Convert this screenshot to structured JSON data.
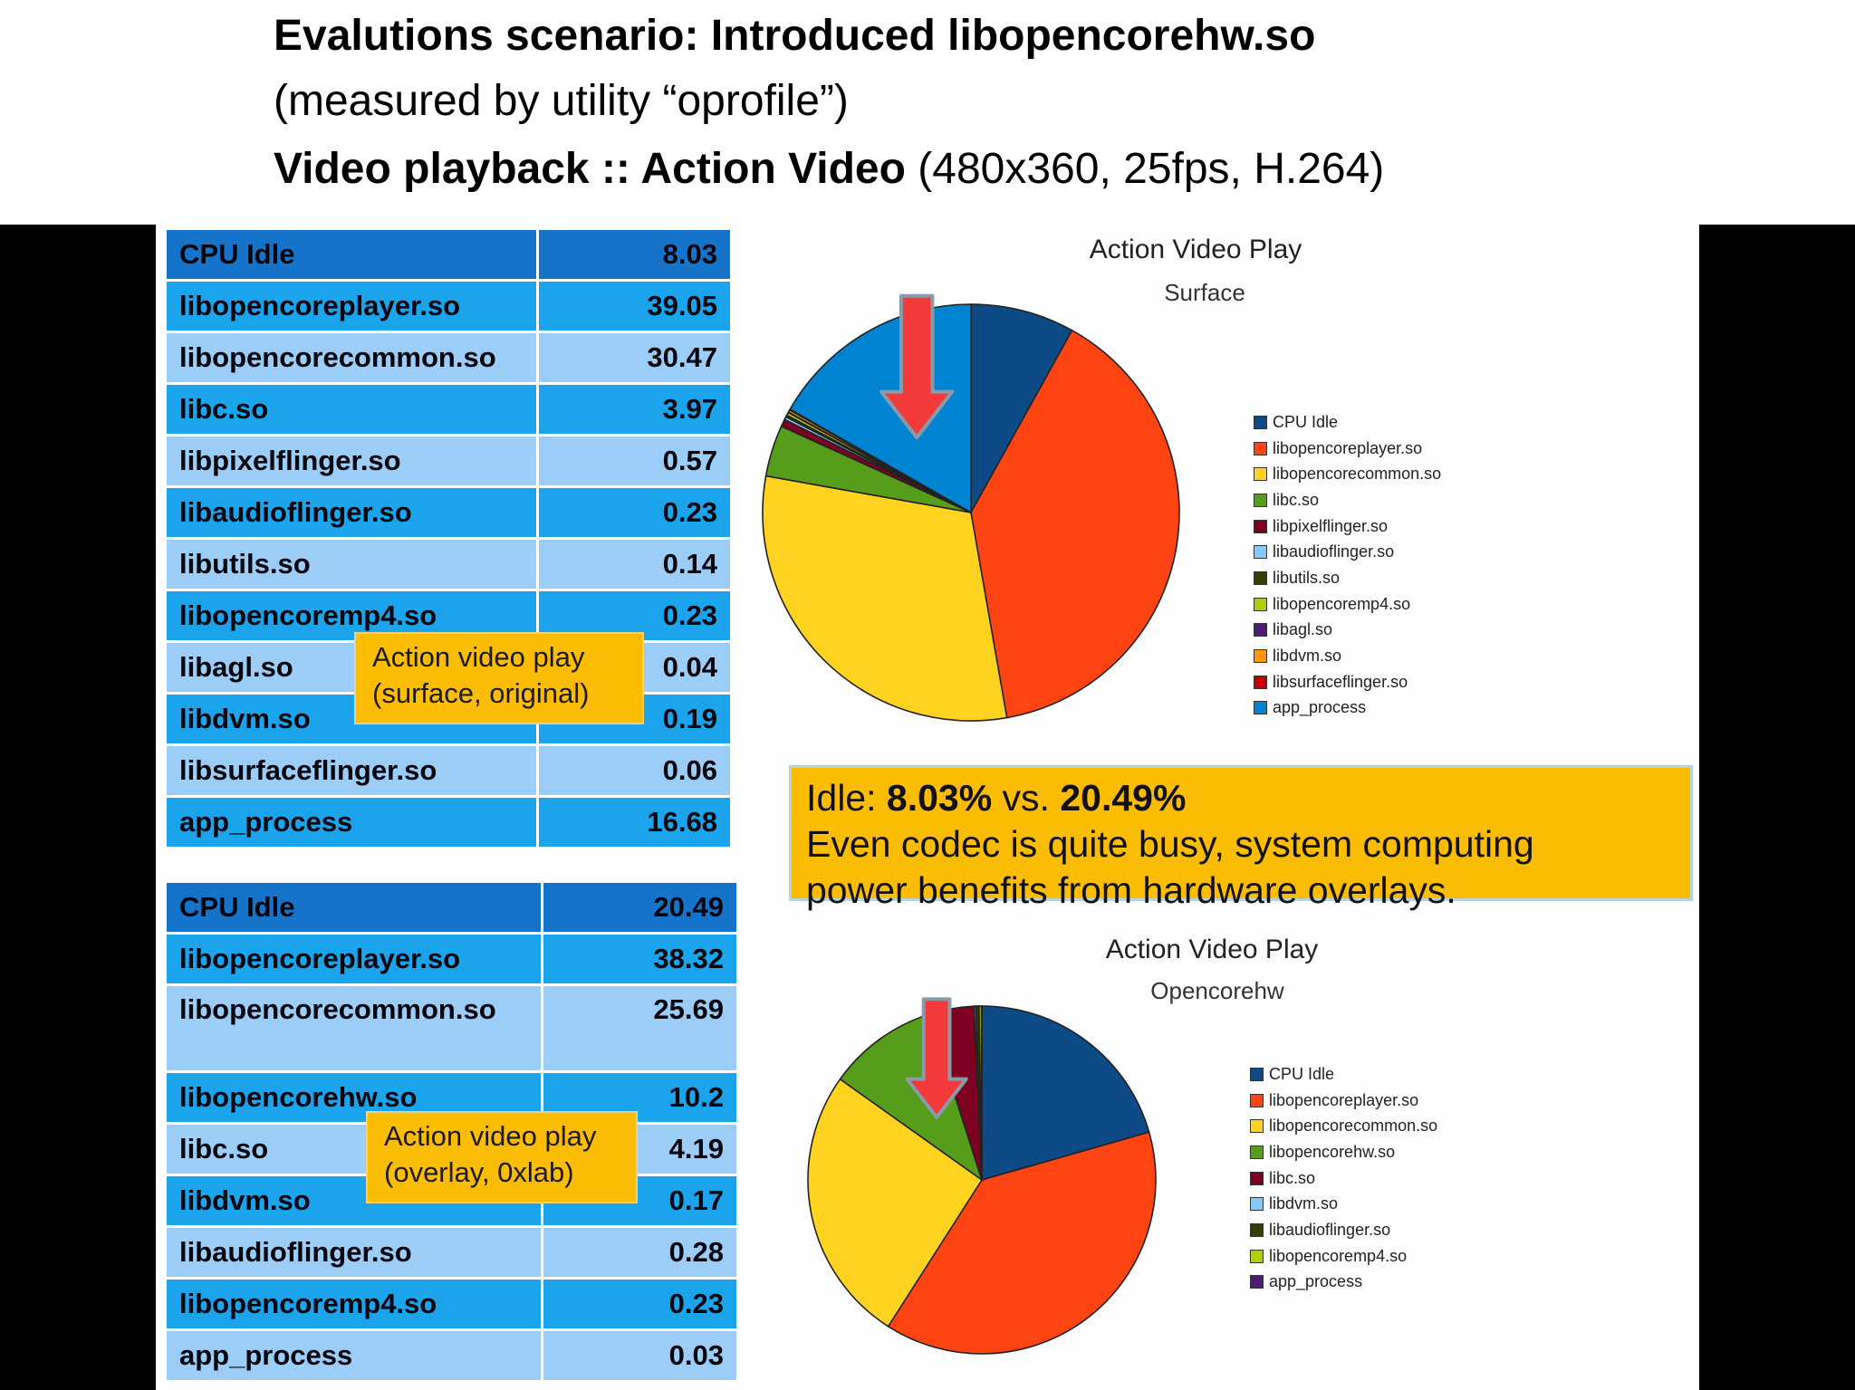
{
  "header": {
    "line1": "Evalutions scenario: Introduced libopencorehw.so",
    "line2": "(measured by utility “oprofile”)",
    "line3_bold": "Video playback :: Action Video",
    "line3_rest": " (480x360, 25fps, H.264)"
  },
  "table_surface": {
    "rows": [
      {
        "name": "CPU Idle",
        "value": "8.03"
      },
      {
        "name": "libopencoreplayer.so",
        "value": "39.05"
      },
      {
        "name": "libopencorecommon.so",
        "value": "30.47"
      },
      {
        "name": "libc.so",
        "value": "3.97"
      },
      {
        "name": "libpixelflinger.so",
        "value": "0.57"
      },
      {
        "name": "libaudioflinger.so",
        "value": "0.23"
      },
      {
        "name": "libutils.so",
        "value": "0.14"
      },
      {
        "name": "libopencoremp4.so",
        "value": "0.23"
      },
      {
        "name": "libagl.so",
        "value": "0.04"
      },
      {
        "name": "libdvm.so",
        "value": "0.19"
      },
      {
        "name": "libsurfaceflinger.so",
        "value": "0.06"
      },
      {
        "name": "app_process",
        "value": "16.68"
      }
    ],
    "callout": [
      "Action video play",
      "(surface, original)"
    ]
  },
  "table_overlay": {
    "rows": [
      {
        "name": "CPU Idle",
        "value": "20.49"
      },
      {
        "name": "libopencoreplayer.so",
        "value": "38.32"
      },
      {
        "name": "libopencorecommon.so",
        "value": "25.69"
      },
      {
        "name": "libopencorehw.so",
        "value": "10.2"
      },
      {
        "name": "libc.so",
        "value": "4.19"
      },
      {
        "name": "libdvm.so",
        "value": "0.17"
      },
      {
        "name": "libaudioflinger.so",
        "value": "0.28"
      },
      {
        "name": "libopencoremp4.so",
        "value": "0.23"
      },
      {
        "name": "app_process",
        "value": "0.03"
      }
    ],
    "callout": [
      "Action video play",
      "(overlay, 0xlab)"
    ]
  },
  "summary": {
    "idle_label": "Idle: ",
    "idle_a": "8.03%",
    "vs": " vs. ",
    "idle_b": "20.49%",
    "line2": "Even codec is quite busy, system computing",
    "line3": "power benefits from hardware overlays."
  },
  "chart_data": [
    {
      "type": "pie",
      "title": "Action Video Play",
      "subtitle": "Surface",
      "labels": [
        "CPU Idle",
        "libopencoreplayer.so",
        "libopencorecommon.so",
        "libc.so",
        "libpixelflinger.so",
        "libaudioflinger.so",
        "libutils.so",
        "libopencoremp4.so",
        "libagl.so",
        "libdvm.so",
        "libsurfaceflinger.so",
        "app_process"
      ],
      "values": [
        8.03,
        39.05,
        30.47,
        3.97,
        0.57,
        0.23,
        0.14,
        0.23,
        0.04,
        0.19,
        0.06,
        16.68
      ],
      "colors": [
        "#0d4a86",
        "#ff4413",
        "#ffd320",
        "#579d1c",
        "#7e0021",
        "#83caff",
        "#314004",
        "#aecf00",
        "#4b1f6f",
        "#ff950e",
        "#c5000b",
        "#0084d1"
      ],
      "legend_position": "right"
    },
    {
      "type": "pie",
      "title": "Action Video Play",
      "subtitle": "Opencorehw",
      "labels": [
        "CPU Idle",
        "libopencoreplayer.so",
        "libopencorecommon.so",
        "libopencorehw.so",
        "libc.so",
        "libdvm.so",
        "libaudioflinger.so",
        "libopencoremp4.so",
        "app_process"
      ],
      "values": [
        20.49,
        38.32,
        25.69,
        10.2,
        4.19,
        0.17,
        0.28,
        0.23,
        0.03
      ],
      "colors": [
        "#0d4a86",
        "#ff4413",
        "#ffd320",
        "#579d1c",
        "#7e0021",
        "#83caff",
        "#314004",
        "#aecf00",
        "#4b1f6f"
      ],
      "legend_position": "right"
    }
  ]
}
